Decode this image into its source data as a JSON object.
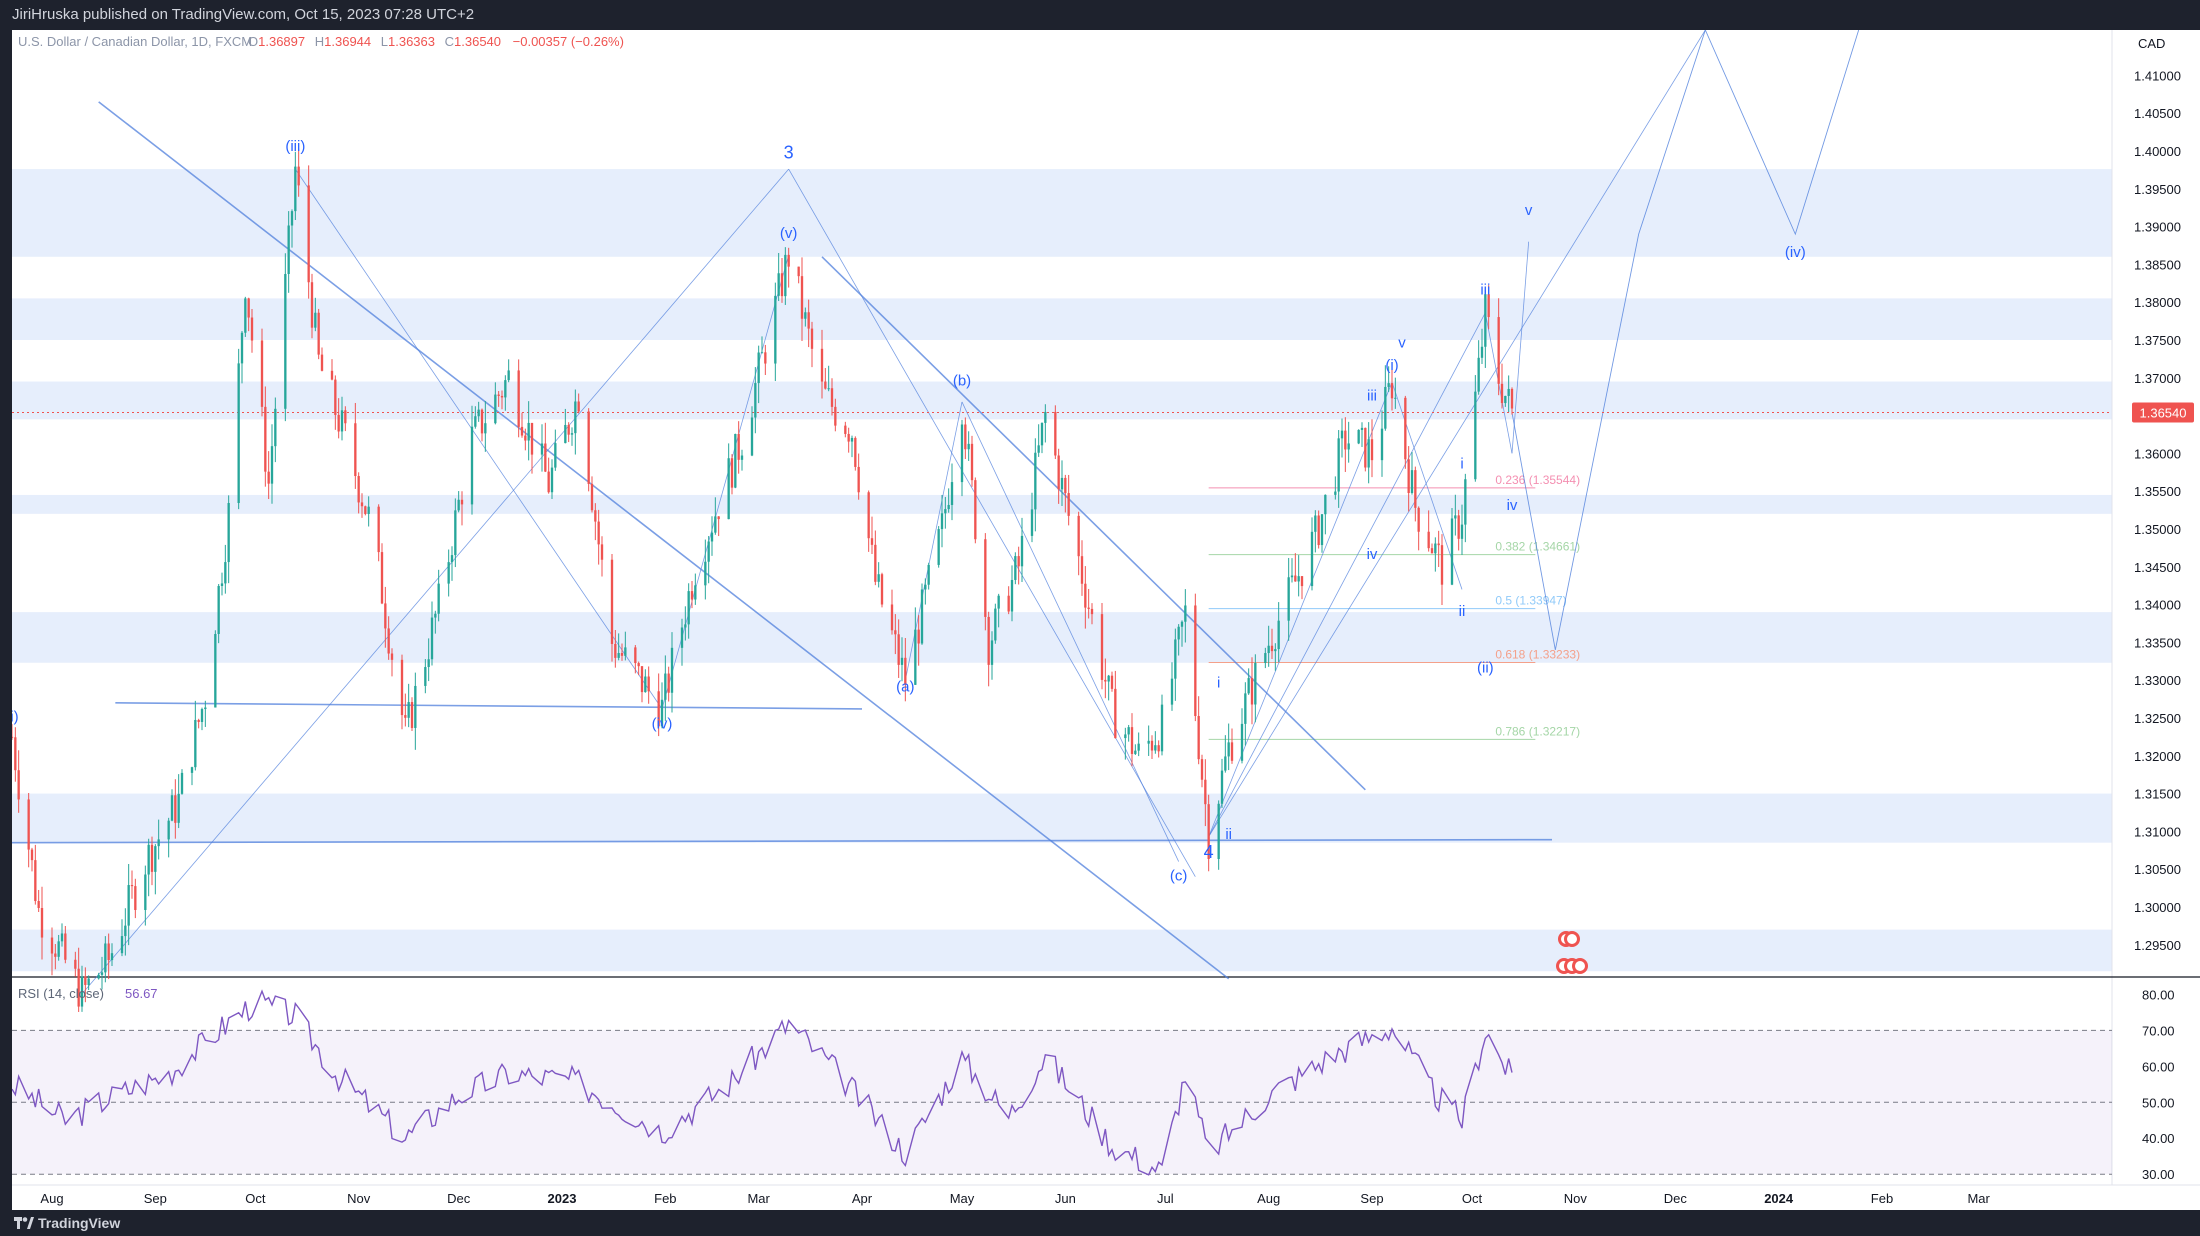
{
  "header": {
    "publish_line": "JiriHruska published on TradingView.com, Oct 15, 2023 07:28 UTC+2"
  },
  "legend": {
    "symbol": "U.S. Dollar / Canadian Dollar, 1D, FXCM",
    "open_label": "O",
    "open": "1.36897",
    "high_label": "H",
    "high": "1.36944",
    "low_label": "L",
    "low": "1.36363",
    "close_label": "C",
    "close": "1.36540",
    "change": "−0.00357 (−0.26%)"
  },
  "currency": "CAD",
  "last_price": "1.36540",
  "footer": {
    "brand": "TradingView"
  },
  "colors": {
    "up": "#26a69a",
    "down": "#ef5350",
    "waves": "#4f7fdc",
    "zones": "#e6eefc",
    "rsi": "#7e57c2"
  },
  "chart_data": [
    {
      "type": "candlestick",
      "title": "",
      "yticks": [
        1.295,
        1.3,
        1.305,
        1.31,
        1.315,
        1.32,
        1.325,
        1.33,
        1.335,
        1.34,
        1.345,
        1.35,
        1.355,
        1.36,
        1.365,
        1.37,
        1.375,
        1.38,
        1.385,
        1.39,
        1.395,
        1.4,
        1.405,
        1.41
      ],
      "ytick_labels": [
        "1.29500",
        "1.30000",
        "1.30500",
        "1.31000",
        "1.31500",
        "1.32000",
        "1.32500",
        "1.33000",
        "1.33500",
        "1.34000",
        "1.34500",
        "1.35000",
        "1.35500",
        "1.36000",
        "1.36500",
        "1.37000",
        "1.37500",
        "1.38000",
        "1.38500",
        "1.39000",
        "1.39500",
        "1.40000",
        "1.40500",
        "1.41000"
      ],
      "ylim": [
        1.291,
        1.416
      ],
      "x_ticks": [
        {
          "label": "Aug",
          "date": "2022-08-01"
        },
        {
          "label": "Sep",
          "date": "2022-09-01"
        },
        {
          "label": "Oct",
          "date": "2022-10-01"
        },
        {
          "label": "Nov",
          "date": "2022-11-01"
        },
        {
          "label": "Dec",
          "date": "2022-12-01"
        },
        {
          "label": "2023",
          "date": "2023-01-01",
          "bold": true
        },
        {
          "label": "Feb",
          "date": "2023-02-01"
        },
        {
          "label": "Mar",
          "date": "2023-03-01"
        },
        {
          "label": "Apr",
          "date": "2023-04-01"
        },
        {
          "label": "May",
          "date": "2023-05-01"
        },
        {
          "label": "Jun",
          "date": "2023-06-01"
        },
        {
          "label": "Jul",
          "date": "2023-07-01"
        },
        {
          "label": "Aug",
          "date": "2023-08-01"
        },
        {
          "label": "Sep",
          "date": "2023-09-01"
        },
        {
          "label": "Oct",
          "date": "2023-10-01"
        },
        {
          "label": "Nov",
          "date": "2023-11-01"
        },
        {
          "label": "Dec",
          "date": "2023-12-01"
        },
        {
          "label": "2024",
          "date": "2024-01-01",
          "bold": true
        },
        {
          "label": "Feb",
          "date": "2024-02-01"
        },
        {
          "label": "Mar",
          "date": "2024-03-01"
        }
      ],
      "xlim": [
        "2022-07-20",
        "2024-04-10"
      ],
      "price_path": [
        [
          "2022-07-20",
          1.3225
        ],
        [
          "2022-07-28",
          1.2995
        ],
        [
          "2022-08-10",
          1.2885
        ],
        [
          "2022-08-18",
          1.293
        ],
        [
          "2022-08-29",
          1.306
        ],
        [
          "2022-09-08",
          1.314
        ],
        [
          "2022-09-16",
          1.328
        ],
        [
          "2022-09-23",
          1.352
        ],
        [
          "2022-09-28",
          1.383
        ],
        [
          "2022-10-05",
          1.356
        ],
        [
          "2022-10-13",
          1.3976
        ],
        [
          "2022-10-20",
          1.372
        ],
        [
          "2022-10-28",
          1.362
        ],
        [
          "2022-11-05",
          1.35
        ],
        [
          "2022-11-15",
          1.3227
        ],
        [
          "2022-11-25",
          1.34
        ],
        [
          "2022-12-05",
          1.362
        ],
        [
          "2022-12-16",
          1.37
        ],
        [
          "2022-12-28",
          1.356
        ],
        [
          "2023-01-06",
          1.368
        ],
        [
          "2023-01-16",
          1.335
        ],
        [
          "2023-01-31",
          1.3262
        ],
        [
          "2023-02-10",
          1.345
        ],
        [
          "2023-02-24",
          1.362
        ],
        [
          "2023-03-10",
          1.3862
        ],
        [
          "2023-03-20",
          1.368
        ],
        [
          "2023-03-29",
          1.363
        ],
        [
          "2023-04-05",
          1.343
        ],
        [
          "2023-04-14",
          1.33
        ],
        [
          "2023-04-25",
          1.35
        ],
        [
          "2023-05-01",
          1.3668
        ],
        [
          "2023-05-09",
          1.335
        ],
        [
          "2023-05-18",
          1.345
        ],
        [
          "2023-05-26",
          1.365
        ],
        [
          "2023-06-05",
          1.346
        ],
        [
          "2023-06-15",
          1.326
        ],
        [
          "2023-06-23",
          1.32
        ],
        [
          "2023-06-30",
          1.324
        ],
        [
          "2023-07-07",
          1.3388
        ],
        [
          "2023-07-14",
          1.3093
        ],
        [
          "2023-07-20",
          1.321
        ],
        [
          "2023-08-01",
          1.335
        ],
        [
          "2023-08-15",
          1.349
        ],
        [
          "2023-08-24",
          1.362
        ],
        [
          "2023-09-01",
          1.36
        ],
        [
          "2023-09-07",
          1.3694
        ],
        [
          "2023-09-14",
          1.353
        ],
        [
          "2023-09-22",
          1.345
        ],
        [
          "2023-09-28",
          1.352
        ],
        [
          "2023-10-05",
          1.3786
        ],
        [
          "2023-10-09",
          1.37
        ],
        [
          "2023-10-13",
          1.3654
        ]
      ],
      "series": [
        {
          "name": "",
          "values": [
            [
              "2023-10-13",
              1.3654
            ],
            [
              "2023-10-26",
              1.334
            ],
            [
              "2023-11-20",
              1.389
            ],
            [
              "2023-12-10",
              1.416
            ],
            [
              "2024-01-06",
              1.389
            ],
            [
              "2024-01-25",
              1.416
            ]
          ]
        }
      ],
      "wave_labels": [
        {
          "text": "(i)",
          "date": "2022-07-20",
          "y": 1.3245
        },
        {
          "text": "(iii)",
          "date": "2022-10-13",
          "y": 1.4
        },
        {
          "text": "3",
          "date": "2023-03-10",
          "y": 1.399
        },
        {
          "text": "(v)",
          "date": "2023-03-10",
          "y": 1.3885
        },
        {
          "text": "(iv)",
          "date": "2023-01-31",
          "y": 1.3236
        },
        {
          "text": "(a)",
          "date": "2023-04-14",
          "y": 1.3285
        },
        {
          "text": "(b)",
          "date": "2023-05-01",
          "y": 1.369
        },
        {
          "text": "(c)",
          "date": "2023-07-05",
          "y": 1.3035
        },
        {
          "text": "4",
          "date": "2023-07-14",
          "y": 1.3065
        },
        {
          "text": "i",
          "date": "2023-07-17",
          "y": 1.329
        },
        {
          "text": "ii",
          "date": "2023-07-20",
          "y": 1.309
        },
        {
          "text": "iii",
          "date": "2023-09-01",
          "y": 1.367
        },
        {
          "text": "iv",
          "date": "2023-09-01",
          "y": 1.346
        },
        {
          "text": "(i)",
          "date": "2023-09-07",
          "y": 1.371
        },
        {
          "text": "v",
          "date": "2023-09-10",
          "y": 1.374
        },
        {
          "text": "i",
          "date": "2023-09-28",
          "y": 1.358
        },
        {
          "text": "ii",
          "date": "2023-09-28",
          "y": 1.3385
        },
        {
          "text": "(ii)",
          "date": "2023-10-05",
          "y": 1.331
        },
        {
          "text": "iii",
          "date": "2023-10-05",
          "y": 1.381
        },
        {
          "text": "iv",
          "date": "2023-10-13",
          "y": 1.3525
        },
        {
          "text": "v",
          "date": "2023-10-18",
          "y": 1.3915
        },
        {
          "text": "(iv)",
          "date": "2024-01-06",
          "y": 1.386
        }
      ],
      "fib_levels": [
        {
          "ratio": "0.236",
          "price": "1.35544",
          "color": "#f48fb1"
        },
        {
          "ratio": "0.382",
          "price": "1.34661",
          "color": "#a5d6a7"
        },
        {
          "ratio": "0.5",
          "price": "1.33947",
          "color": "#90caf9"
        },
        {
          "ratio": "0.618",
          "price": "1.33233",
          "color": "#f4a08a"
        },
        {
          "ratio": "0.786",
          "price": "1.32217",
          "color": "#a5d6a7"
        }
      ],
      "zones": [
        [
          1.386,
          1.3976
        ],
        [
          1.375,
          1.3805
        ],
        [
          1.3645,
          1.3695
        ],
        [
          1.352,
          1.3545
        ],
        [
          1.3323,
          1.339
        ],
        [
          1.3085,
          1.315
        ],
        [
          1.2915,
          1.297
        ]
      ]
    },
    {
      "type": "line",
      "title": "RSI (14, close)",
      "current_value": "56.67",
      "yticks": [
        30,
        40,
        50,
        60,
        70,
        80
      ],
      "ytick_labels": [
        "30.00",
        "40.00",
        "50.00",
        "60.00",
        "70.00",
        "80.00"
      ],
      "ylim": [
        27,
        84
      ],
      "band": [
        30,
        70
      ],
      "series": [
        {
          "name": "",
          "values": [
            [
              "2022-07-20",
              55
            ],
            [
              "2022-08-05",
              45
            ],
            [
              "2022-08-20",
              52
            ],
            [
              "2022-09-05",
              58
            ],
            [
              "2022-09-20",
              70
            ],
            [
              "2022-10-01",
              78
            ],
            [
              "2022-10-13",
              74
            ],
            [
              "2022-10-25",
              58
            ],
            [
              "2022-11-15",
              40
            ],
            [
              "2022-12-01",
              52
            ],
            [
              "2022-12-16",
              58
            ],
            [
              "2023-01-05",
              56
            ],
            [
              "2023-01-31",
              42
            ],
            [
              "2023-02-20",
              55
            ],
            [
              "2023-03-10",
              72
            ],
            [
              "2023-03-25",
              58
            ],
            [
              "2023-04-14",
              36
            ],
            [
              "2023-05-01",
              62
            ],
            [
              "2023-05-15",
              46
            ],
            [
              "2023-05-26",
              63
            ],
            [
              "2023-06-15",
              38
            ],
            [
              "2023-06-30",
              31
            ],
            [
              "2023-07-07",
              58
            ],
            [
              "2023-07-14",
              36
            ],
            [
              "2023-08-01",
              52
            ],
            [
              "2023-08-20",
              63
            ],
            [
              "2023-09-07",
              71
            ],
            [
              "2023-09-20",
              52
            ],
            [
              "2023-09-28",
              45
            ],
            [
              "2023-10-05",
              70
            ],
            [
              "2023-10-13",
              56.67
            ]
          ]
        }
      ]
    }
  ]
}
